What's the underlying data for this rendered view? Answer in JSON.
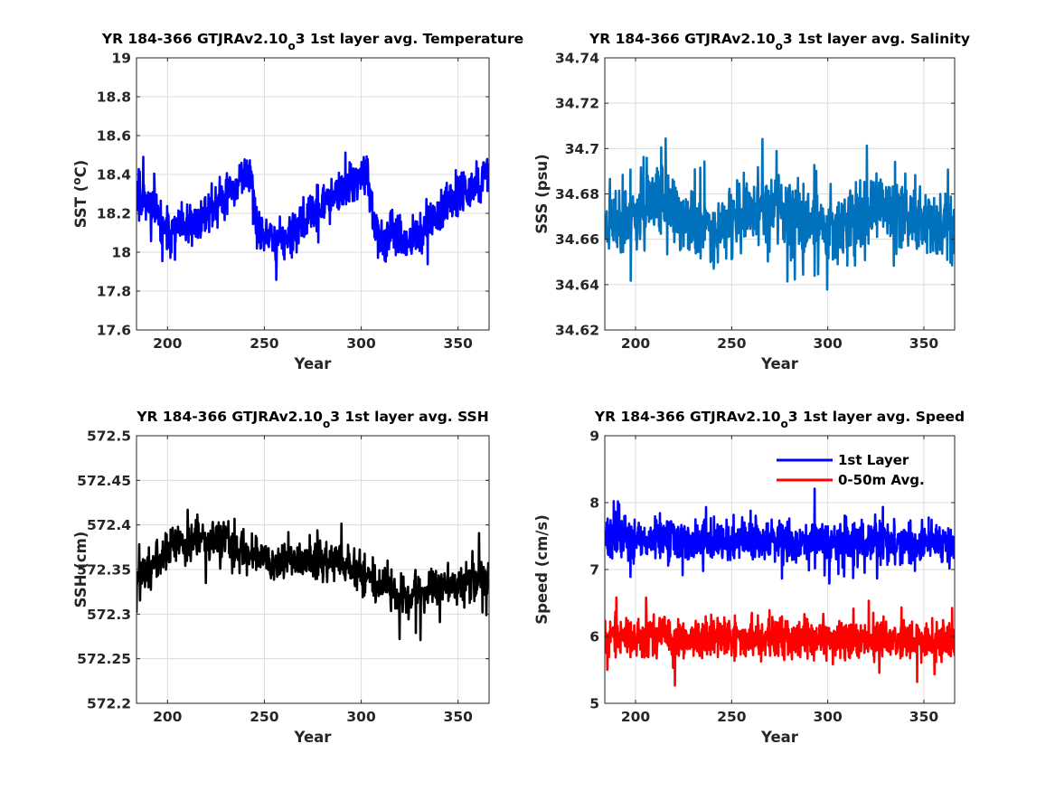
{
  "chart_data": [
    {
      "type": "line",
      "title": "YR 184-366 GTJRAv2.10_o3 1st layer avg. Temperature",
      "title_parts": {
        "pre": "YR 184-366 GTJRAv2.10",
        "sub": "o",
        "post": "3 1st layer avg. Temperature"
      },
      "xlabel": "Year",
      "ylabel": "SST (°C)",
      "ylabel_parts": {
        "pre": "SST (",
        "sup": "o",
        "post": "C)"
      },
      "xlim": [
        184,
        366
      ],
      "ylim": [
        17.6,
        19.0
      ],
      "xticks": [
        200,
        250,
        300,
        350
      ],
      "yticks": [
        17.6,
        17.8,
        18.0,
        18.2,
        18.4,
        18.6,
        18.8,
        19.0
      ],
      "ytick_labels": [
        "17.6",
        "17.8",
        "18",
        "18.2",
        "18.4",
        "18.6",
        "18.8",
        "19"
      ],
      "grid": true,
      "series": [
        {
          "color": "#0000ff",
          "x_start": 184,
          "x_end": 366,
          "points_per_year": 6,
          "seed": 11,
          "noise": 0.15,
          "clip": [
            17.72,
            18.81
          ],
          "note": "sawtooth annual-like cycle; cycle envelope (year, mean)",
          "envelope": [
            [
              184,
              18.35
            ],
            [
              200,
              18.1
            ],
            [
              215,
              18.15
            ],
            [
              230,
              18.3
            ],
            [
              243,
              18.42
            ],
            [
              246,
              18.1
            ],
            [
              260,
              18.05
            ],
            [
              280,
              18.25
            ],
            [
              303,
              18.4
            ],
            [
              307,
              18.1
            ],
            [
              325,
              18.05
            ],
            [
              345,
              18.25
            ],
            [
              366,
              18.4
            ]
          ]
        }
      ]
    },
    {
      "type": "line",
      "title": "YR 184-366 GTJRAv2.10_o3 1st layer avg. Salinity",
      "title_parts": {
        "pre": "YR 184-366 GTJRAv2.10",
        "sub": "o",
        "post": "3 1st layer avg. Salinity"
      },
      "xlabel": "Year",
      "ylabel": "SSS (psu)",
      "xlim": [
        184,
        366
      ],
      "ylim": [
        34.62,
        34.74
      ],
      "xticks": [
        200,
        250,
        300,
        350
      ],
      "yticks": [
        34.62,
        34.64,
        34.66,
        34.68,
        34.7,
        34.72,
        34.74
      ],
      "ytick_labels": [
        "34.62",
        "34.64",
        "34.66",
        "34.68",
        "34.7",
        "34.72",
        "34.74"
      ],
      "grid": true,
      "series": [
        {
          "color": "#0072bd",
          "x_start": 184,
          "x_end": 366,
          "points_per_year": 6,
          "seed": 23,
          "noise": 0.022,
          "clip": [
            34.626,
            34.725
          ],
          "envelope": [
            [
              184,
              34.666
            ],
            [
              210,
              34.675
            ],
            [
              240,
              34.665
            ],
            [
              270,
              34.674
            ],
            [
              300,
              34.665
            ],
            [
              330,
              34.674
            ],
            [
              366,
              34.664
            ]
          ]
        }
      ]
    },
    {
      "type": "line",
      "title": "YR 184-366 GTJRAv2.10_o3 1st layer avg. SSH",
      "title_parts": {
        "pre": "YR 184-366 GTJRAv2.10",
        "sub": "o",
        "post": "3 1st layer avg. SSH"
      },
      "xlabel": "Year",
      "ylabel": "SSH (cm)",
      "xlim": [
        184,
        366
      ],
      "ylim": [
        572.2,
        572.5
      ],
      "xticks": [
        200,
        250,
        300,
        350
      ],
      "yticks": [
        572.2,
        572.25,
        572.3,
        572.35,
        572.4,
        572.45,
        572.5
      ],
      "ytick_labels": [
        "572.2",
        "572.25",
        "572.3",
        "572.35",
        "572.4",
        "572.45",
        "572.5"
      ],
      "grid": true,
      "series": [
        {
          "color": "#000000",
          "x_start": 184,
          "x_end": 366,
          "points_per_year": 5,
          "seed": 37,
          "noise": 0.032,
          "clip": [
            572.205,
            572.482
          ],
          "envelope": [
            [
              184,
              572.34
            ],
            [
              205,
              572.38
            ],
            [
              230,
              572.38
            ],
            [
              260,
              572.36
            ],
            [
              290,
              572.36
            ],
            [
              320,
              572.32
            ],
            [
              345,
              572.33
            ],
            [
              366,
              572.34
            ]
          ]
        }
      ]
    },
    {
      "type": "line",
      "title": "YR 184-366 GTJRAv2.10_o3 1st layer avg. Speed",
      "title_parts": {
        "pre": "YR 184-366 GTJRAv2.10",
        "sub": "o",
        "post": "3 1st layer avg. Speed"
      },
      "xlabel": "Year",
      "ylabel": "Speed (cm/s)",
      "xlim": [
        184,
        366
      ],
      "ylim": [
        5,
        9
      ],
      "xticks": [
        200,
        250,
        300,
        350
      ],
      "yticks": [
        5,
        6,
        7,
        8,
        9
      ],
      "ytick_labels": [
        "5",
        "6",
        "7",
        "8",
        "9"
      ],
      "grid": true,
      "legend": {
        "position": "top-right",
        "entries": [
          "1st Layer",
          "0-50m Avg."
        ]
      },
      "series": [
        {
          "name": "1st Layer",
          "color": "#0000ff",
          "x_start": 184,
          "x_end": 366,
          "points_per_year": 6,
          "seed": 51,
          "noise": 0.45,
          "clip": [
            6.55,
            8.82
          ],
          "envelope": [
            [
              184,
              7.45
            ],
            [
              366,
              7.4
            ]
          ]
        },
        {
          "name": "0-50m Avg.",
          "color": "#ff0000",
          "x_start": 184,
          "x_end": 366,
          "points_per_year": 6,
          "seed": 67,
          "noise": 0.42,
          "clip": [
            5.03,
            7.25
          ],
          "envelope": [
            [
              184,
              6.0
            ],
            [
              366,
              5.95
            ]
          ]
        }
      ]
    }
  ]
}
